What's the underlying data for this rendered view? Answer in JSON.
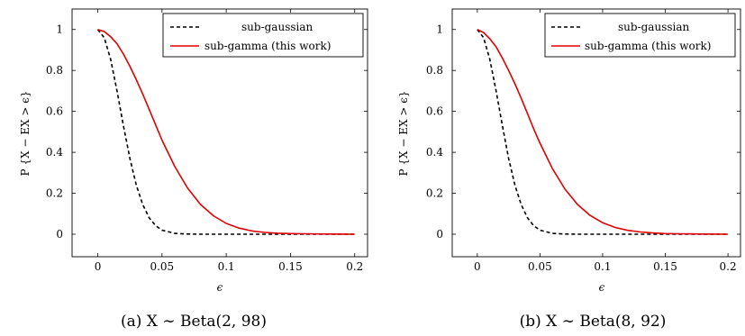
{
  "chart_data": [
    {
      "type": "line",
      "caption": "(a) X ∼ Beta(2, 98)",
      "xlabel": "ϵ",
      "ylabel": "P {X − EX > ϵ}",
      "xlim": [
        -0.02,
        0.21
      ],
      "ylim": [
        -0.11,
        1.1
      ],
      "xticks": [
        0,
        0.05,
        0.1,
        0.15,
        0.2
      ],
      "xticklabels": [
        "0",
        "0.05",
        "0.1",
        "0.15",
        "0.2"
      ],
      "yticks": [
        0,
        0.2,
        0.4,
        0.6,
        0.8,
        1
      ],
      "yticklabels": [
        "0",
        "0.2",
        "0.4",
        "0.6",
        "0.8",
        "1"
      ],
      "legend_position": "top-right",
      "series": [
        {
          "name": "sub-gaussian",
          "style": "dashed",
          "color": "#000000",
          "x": [
            0,
            0.005,
            0.01,
            0.015,
            0.02,
            0.025,
            0.03,
            0.035,
            0.04,
            0.045,
            0.05,
            0.06,
            0.07,
            0.08,
            0.09,
            0.1,
            0.12,
            0.15,
            0.2
          ],
          "y": [
            1,
            0.96,
            0.855,
            0.7,
            0.53,
            0.37,
            0.24,
            0.145,
            0.08,
            0.042,
            0.02,
            0.004,
            0.001,
            0,
            0,
            0,
            0,
            0,
            0
          ]
        },
        {
          "name": "sub-gamma (this work)",
          "style": "solid",
          "color": "#e00000",
          "x": [
            0,
            0.005,
            0.01,
            0.015,
            0.02,
            0.025,
            0.03,
            0.035,
            0.04,
            0.045,
            0.05,
            0.06,
            0.07,
            0.08,
            0.09,
            0.1,
            0.11,
            0.12,
            0.13,
            0.14,
            0.15,
            0.16,
            0.18,
            0.2
          ],
          "y": [
            1,
            0.99,
            0.965,
            0.93,
            0.88,
            0.82,
            0.755,
            0.685,
            0.61,
            0.535,
            0.46,
            0.33,
            0.225,
            0.145,
            0.09,
            0.053,
            0.03,
            0.016,
            0.009,
            0.005,
            0.003,
            0.002,
            0.001,
            0
          ]
        }
      ]
    },
    {
      "type": "line",
      "caption": "(b) X ∼ Beta(8, 92)",
      "xlabel": "ϵ",
      "ylabel": "P {X − EX > ϵ}",
      "xlim": [
        -0.02,
        0.21
      ],
      "ylim": [
        -0.11,
        1.1
      ],
      "xticks": [
        0,
        0.05,
        0.1,
        0.15,
        0.2
      ],
      "xticklabels": [
        "0",
        "0.05",
        "0.1",
        "0.15",
        "0.2"
      ],
      "yticks": [
        0,
        0.2,
        0.4,
        0.6,
        0.8,
        1
      ],
      "yticklabels": [
        "0",
        "0.2",
        "0.4",
        "0.6",
        "0.8",
        "1"
      ],
      "legend_position": "top-right",
      "series": [
        {
          "name": "sub-gaussian",
          "style": "dashed",
          "color": "#000000",
          "x": [
            0,
            0.005,
            0.01,
            0.015,
            0.02,
            0.025,
            0.03,
            0.035,
            0.04,
            0.045,
            0.05,
            0.06,
            0.07,
            0.08,
            0.09,
            0.1,
            0.12,
            0.15,
            0.2
          ],
          "y": [
            1,
            0.96,
            0.855,
            0.7,
            0.53,
            0.37,
            0.24,
            0.145,
            0.08,
            0.042,
            0.02,
            0.004,
            0.001,
            0,
            0,
            0,
            0,
            0,
            0
          ]
        },
        {
          "name": "sub-gamma (this work)",
          "style": "solid",
          "color": "#e00000",
          "x": [
            0,
            0.005,
            0.01,
            0.015,
            0.02,
            0.025,
            0.03,
            0.035,
            0.04,
            0.045,
            0.05,
            0.06,
            0.07,
            0.08,
            0.09,
            0.1,
            0.11,
            0.12,
            0.13,
            0.14,
            0.15,
            0.16,
            0.18,
            0.2
          ],
          "y": [
            1,
            0.985,
            0.955,
            0.915,
            0.86,
            0.8,
            0.735,
            0.665,
            0.59,
            0.515,
            0.445,
            0.32,
            0.22,
            0.145,
            0.092,
            0.056,
            0.033,
            0.019,
            0.011,
            0.006,
            0.003,
            0.002,
            0.001,
            0
          ]
        }
      ]
    }
  ]
}
